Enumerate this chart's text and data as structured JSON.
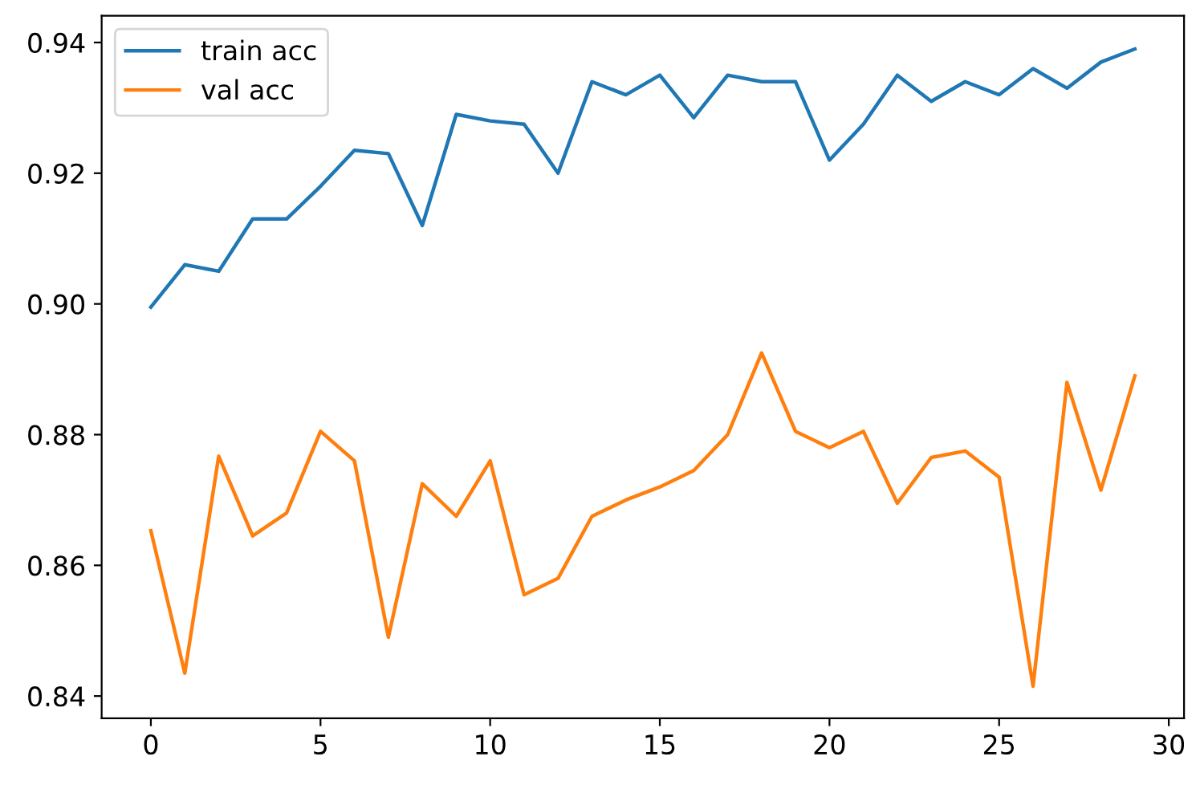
{
  "chart_data": {
    "type": "line",
    "x": [
      0,
      1,
      2,
      3,
      4,
      5,
      6,
      7,
      8,
      9,
      10,
      11,
      12,
      13,
      14,
      15,
      16,
      17,
      18,
      19,
      20,
      21,
      22,
      23,
      24,
      25,
      26,
      27,
      28,
      29
    ],
    "series": [
      {
        "name": "train acc",
        "color": "#1f77b4",
        "values": [
          0.8995,
          0.906,
          0.905,
          0.913,
          0.913,
          0.918,
          0.9235,
          0.923,
          0.912,
          0.929,
          0.928,
          0.9275,
          0.92,
          0.934,
          0.932,
          0.935,
          0.9285,
          0.935,
          0.934,
          0.934,
          0.922,
          0.9275,
          0.935,
          0.931,
          0.934,
          0.932,
          0.936,
          0.933,
          0.937,
          0.939
        ]
      },
      {
        "name": "val acc",
        "color": "#ff7f0e",
        "values": [
          0.8653,
          0.8435,
          0.8767,
          0.8645,
          0.868,
          0.8805,
          0.876,
          0.849,
          0.8725,
          0.8675,
          0.876,
          0.8555,
          0.858,
          0.8675,
          0.87,
          0.872,
          0.8745,
          0.88,
          0.8925,
          0.8805,
          0.878,
          0.8805,
          0.8695,
          0.8765,
          0.8775,
          0.8735,
          0.8415,
          0.888,
          0.8715,
          0.889
        ]
      }
    ],
    "xlim": [
      -1.45,
      30.45
    ],
    "ylim": [
      0.8366,
      0.9441
    ],
    "xticks": [
      0,
      5,
      10,
      15,
      20,
      25,
      30
    ],
    "yticks": [
      {
        "value": 0.84,
        "label": "0.84"
      },
      {
        "value": 0.86,
        "label": "0.86"
      },
      {
        "value": 0.88,
        "label": "0.88"
      },
      {
        "value": 0.9,
        "label": "0.90"
      },
      {
        "value": 0.92,
        "label": "0.92"
      },
      {
        "value": 0.94,
        "label": "0.94"
      }
    ],
    "grid": false,
    "legend": "top left",
    "marker": "none",
    "line_style": "solid"
  }
}
